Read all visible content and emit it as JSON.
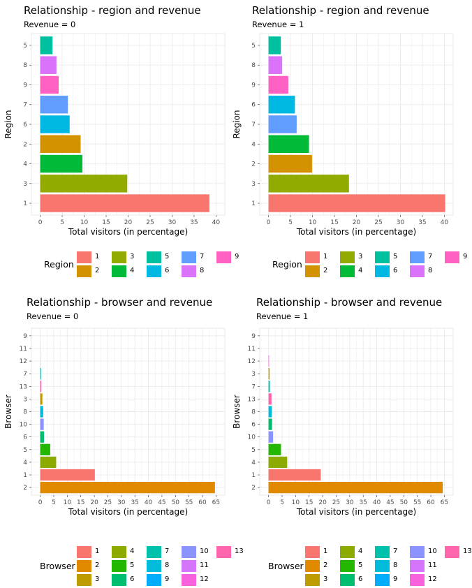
{
  "chart_data": [
    {
      "type": "bar",
      "orientation": "horizontal",
      "title": "Relationship - region and revenue",
      "subtitle": "Revenue = 0",
      "xlabel": "Total visitors (in percentage)",
      "ylabel": "Region",
      "categories": [
        "1",
        "3",
        "4",
        "2",
        "6",
        "7",
        "9",
        "8",
        "5"
      ],
      "values": [
        38.5,
        19.8,
        9.6,
        9.2,
        6.7,
        6.3,
        4.2,
        3.7,
        2.8
      ],
      "xlim": [
        0,
        40
      ],
      "xticks": [
        "0",
        "5",
        "10",
        "15",
        "20",
        "25",
        "30",
        "35",
        "40"
      ],
      "grid": true,
      "legend": {
        "title": "Region",
        "placement": "bottom",
        "columns": [
          [
            "1",
            "2"
          ],
          [
            "3",
            "4"
          ],
          [
            "5",
            "6"
          ],
          [
            "7",
            "8"
          ],
          [
            "9"
          ]
        ]
      }
    },
    {
      "type": "bar",
      "orientation": "horizontal",
      "title": "Relationship - region and revenue",
      "subtitle": "Revenue = 1",
      "xlabel": "Total visitors (in percentage)",
      "ylabel": "Region",
      "categories": [
        "1",
        "3",
        "2",
        "4",
        "7",
        "6",
        "9",
        "8",
        "5"
      ],
      "values": [
        40.2,
        18.3,
        9.9,
        9.2,
        6.4,
        6.0,
        4.5,
        3.1,
        2.8
      ],
      "xlim": [
        0,
        40
      ],
      "xticks": [
        "0",
        "5",
        "10",
        "15",
        "20",
        "25",
        "30",
        "35",
        "40"
      ],
      "grid": true,
      "legend": {
        "title": "Region",
        "placement": "bottom",
        "columns": [
          [
            "1",
            "2"
          ],
          [
            "3",
            "4"
          ],
          [
            "5",
            "6"
          ],
          [
            "7",
            "8"
          ],
          [
            "9"
          ]
        ]
      }
    },
    {
      "type": "bar",
      "orientation": "horizontal",
      "title": "Relationship - browser and revenue",
      "subtitle": "Revenue = 0",
      "xlabel": "Total visitors (in percentage)",
      "ylabel": "Browser",
      "categories": [
        "2",
        "1",
        "4",
        "5",
        "6",
        "10",
        "8",
        "3",
        "13",
        "7",
        "12",
        "11",
        "9"
      ],
      "values": [
        64.6,
        20.2,
        5.9,
        3.7,
        1.4,
        1.3,
        1.1,
        0.8,
        0.4,
        0.3,
        0.05,
        0.03,
        0.01
      ],
      "xlim": [
        0,
        65
      ],
      "xticks": [
        "0",
        "5",
        "10",
        "15",
        "20",
        "25",
        "30",
        "35",
        "40",
        "45",
        "50",
        "55",
        "60",
        "65"
      ],
      "grid": true,
      "legend": {
        "title": "Browser",
        "placement": "bottom",
        "columns": [
          [
            "1",
            "2",
            "3"
          ],
          [
            "4",
            "5",
            "6"
          ],
          [
            "7",
            "8",
            "9"
          ],
          [
            "10",
            "11",
            "12"
          ],
          [
            "13"
          ]
        ]
      }
    },
    {
      "type": "bar",
      "orientation": "horizontal",
      "title": "Relationship - browser and revenue",
      "subtitle": "Revenue = 1",
      "xlabel": "Total visitors (in percentage)",
      "ylabel": "Browser",
      "categories": [
        "2",
        "1",
        "4",
        "5",
        "10",
        "6",
        "8",
        "13",
        "7",
        "3",
        "12",
        "11",
        "9"
      ],
      "values": [
        64.4,
        19.3,
        6.9,
        4.6,
        1.7,
        1.3,
        1.2,
        1.1,
        0.5,
        0.4,
        0.2,
        0.0,
        0.0
      ],
      "xlim": [
        0,
        65
      ],
      "xticks": [
        "0",
        "5",
        "10",
        "15",
        "20",
        "25",
        "30",
        "35",
        "40",
        "45",
        "50",
        "55",
        "60",
        "65"
      ],
      "grid": true,
      "legend": {
        "title": "Browser",
        "placement": "bottom",
        "columns": [
          [
            "1",
            "2",
            "3"
          ],
          [
            "4",
            "5",
            "6"
          ],
          [
            "7",
            "8",
            "9"
          ],
          [
            "10",
            "11",
            "12"
          ],
          [
            "13"
          ]
        ]
      }
    }
  ],
  "colors": {
    "region": {
      "1": "#F8766D",
      "2": "#D39200",
      "3": "#93AA00",
      "4": "#00BA38",
      "5": "#00C19F",
      "6": "#00B9E3",
      "7": "#619CFF",
      "8": "#DB72FB",
      "9": "#FF61C3"
    },
    "browser": {
      "1": "#F8766D",
      "2": "#E18A00",
      "3": "#BE9C00",
      "4": "#8CAB00",
      "5": "#24B700",
      "6": "#00BE70",
      "7": "#00C1AB",
      "8": "#00BBDA",
      "9": "#00ACFC",
      "10": "#8B93FF",
      "11": "#D575FE",
      "12": "#F962DD",
      "13": "#FF65AC"
    },
    "panel_background": "#FFFFFF",
    "grid": "#EBEBEB"
  }
}
